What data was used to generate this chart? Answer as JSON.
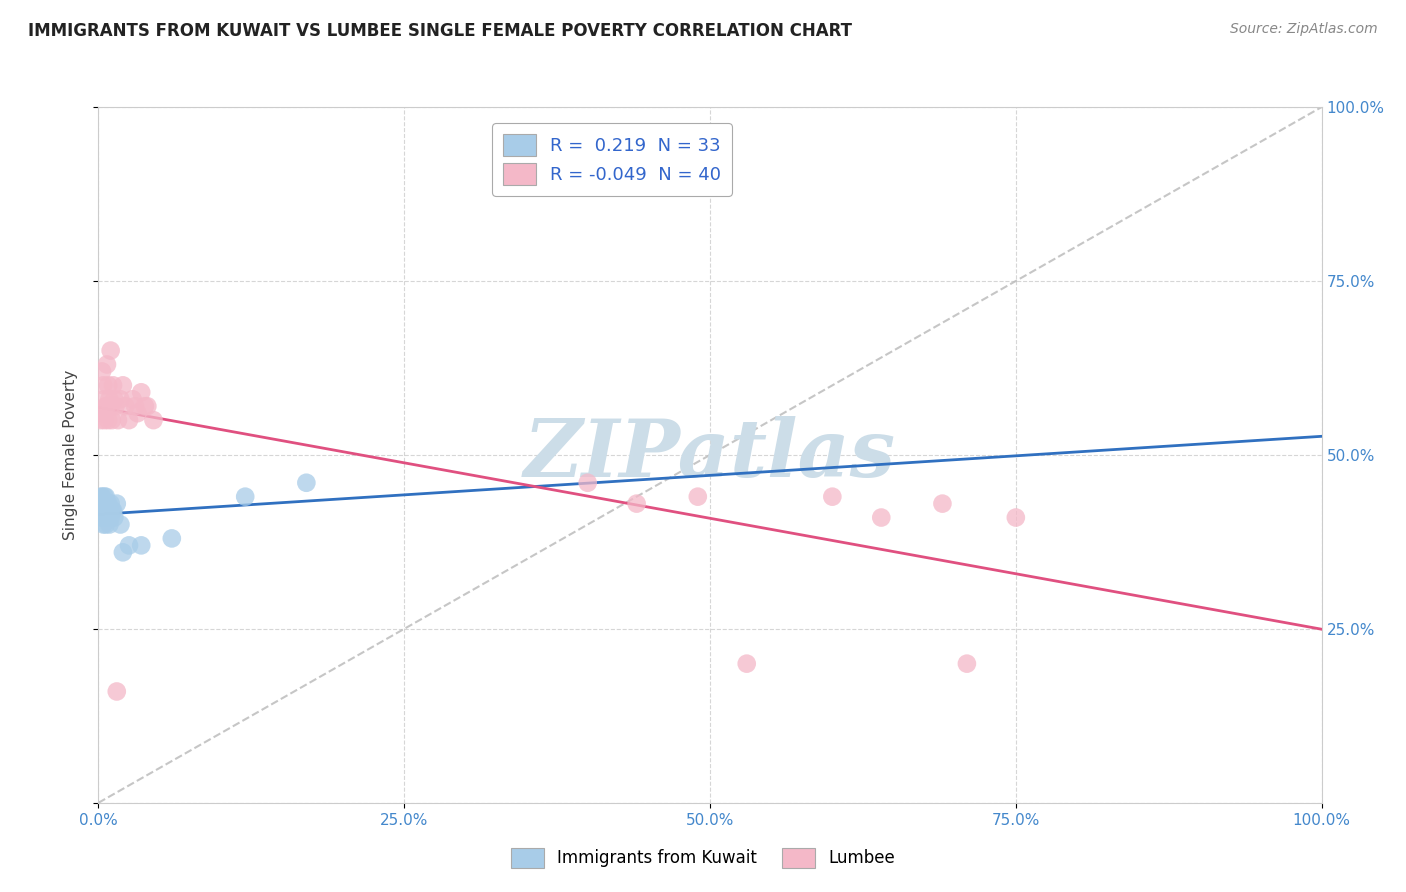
{
  "title": "IMMIGRANTS FROM KUWAIT VS LUMBEE SINGLE FEMALE POVERTY CORRELATION CHART",
  "source": "Source: ZipAtlas.com",
  "ylabel": "Single Female Poverty",
  "xlim": [
    0,
    1.0
  ],
  "ylim": [
    0,
    1.0
  ],
  "xtick_vals": [
    0,
    0.25,
    0.5,
    0.75,
    1.0
  ],
  "xtick_labels": [
    "0.0%",
    "25.0%",
    "50.0%",
    "75.0%",
    "100.0%"
  ],
  "ytick_vals": [
    0,
    0.25,
    0.5,
    0.75,
    1.0
  ],
  "ytick_labels": [
    "",
    "25.0%",
    "50.0%",
    "75.0%",
    "100.0%"
  ],
  "blue_r": 0.219,
  "blue_n": 33,
  "pink_r": -0.049,
  "pink_n": 40,
  "blue_dot_color": "#a8cce8",
  "pink_dot_color": "#f4b8c8",
  "blue_line_color": "#3070c0",
  "pink_line_color": "#e05080",
  "diagonal_color": "#b8b8b8",
  "background_color": "#ffffff",
  "watermark_color": "#ccdde8",
  "grid_color": "#cccccc",
  "tick_color": "#4488cc",
  "title_color": "#222222",
  "source_color": "#888888",
  "blue_x": [
    0.001,
    0.002,
    0.002,
    0.003,
    0.003,
    0.003,
    0.004,
    0.004,
    0.005,
    0.005,
    0.005,
    0.006,
    0.006,
    0.006,
    0.007,
    0.007,
    0.008,
    0.008,
    0.009,
    0.009,
    0.01,
    0.01,
    0.011,
    0.012,
    0.013,
    0.015,
    0.018,
    0.02,
    0.025,
    0.035,
    0.06,
    0.12,
    0.17
  ],
  "blue_y": [
    0.43,
    0.44,
    0.42,
    0.44,
    0.43,
    0.41,
    0.43,
    0.4,
    0.44,
    0.43,
    0.41,
    0.44,
    0.42,
    0.4,
    0.43,
    0.41,
    0.43,
    0.42,
    0.42,
    0.4,
    0.43,
    0.41,
    0.42,
    0.42,
    0.41,
    0.43,
    0.4,
    0.36,
    0.37,
    0.37,
    0.38,
    0.44,
    0.46
  ],
  "pink_x": [
    0.002,
    0.003,
    0.004,
    0.004,
    0.005,
    0.005,
    0.006,
    0.007,
    0.007,
    0.008,
    0.008,
    0.009,
    0.01,
    0.01,
    0.011,
    0.012,
    0.013,
    0.014,
    0.015,
    0.016,
    0.018,
    0.02,
    0.022,
    0.025,
    0.028,
    0.03,
    0.032,
    0.035,
    0.038,
    0.04,
    0.045,
    0.4,
    0.44,
    0.49,
    0.53,
    0.6,
    0.64,
    0.69,
    0.71,
    0.75
  ],
  "pink_y": [
    0.55,
    0.62,
    0.56,
    0.6,
    0.58,
    0.55,
    0.57,
    0.63,
    0.57,
    0.6,
    0.55,
    0.58,
    0.65,
    0.57,
    0.55,
    0.6,
    0.58,
    0.57,
    0.16,
    0.55,
    0.58,
    0.6,
    0.57,
    0.55,
    0.58,
    0.57,
    0.56,
    0.59,
    0.57,
    0.57,
    0.55,
    0.46,
    0.43,
    0.44,
    0.2,
    0.44,
    0.41,
    0.43,
    0.2,
    0.41
  ]
}
